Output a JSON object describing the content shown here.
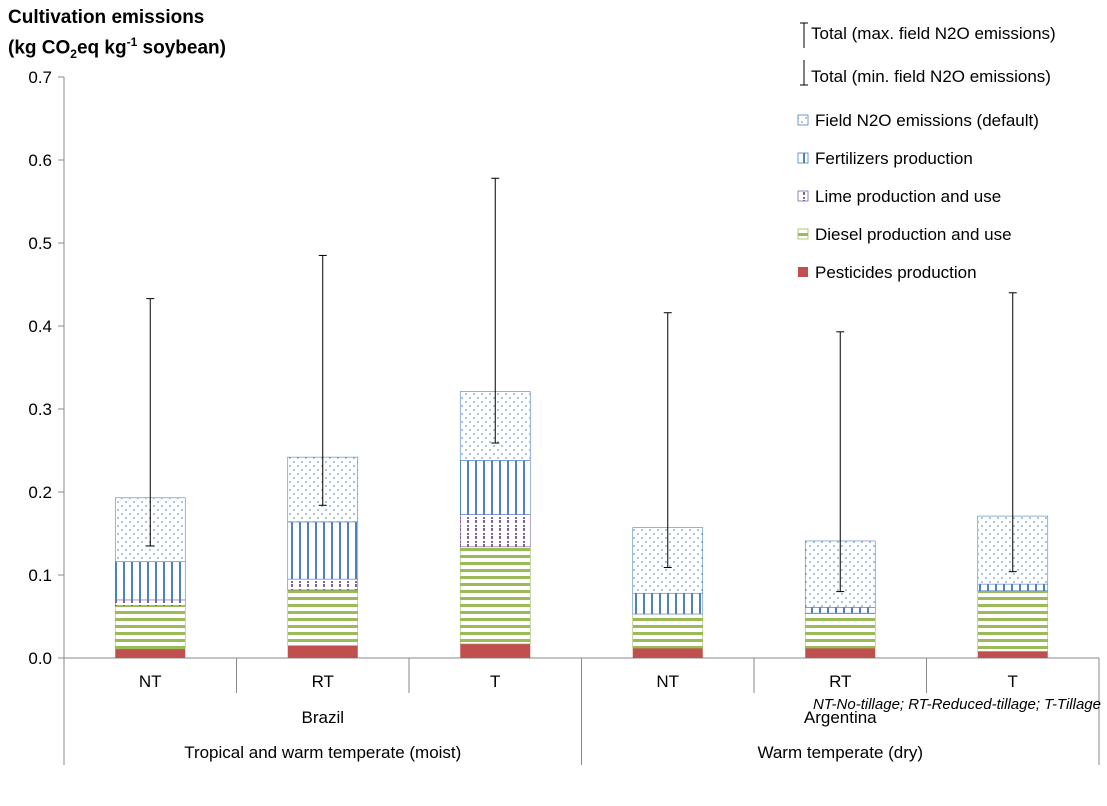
{
  "chart_data": {
    "type": "bar",
    "stacked": true,
    "title_line1": "Cultivation emissions",
    "title_line2_parts": [
      "(kg CO",
      "2",
      "eq kg",
      "-1",
      " soybean)"
    ],
    "ylim": [
      0,
      0.7
    ],
    "yticks": [
      "0.0",
      "0.1",
      "0.2",
      "0.3",
      "0.4",
      "0.5",
      "0.6",
      "0.7"
    ],
    "yticks_values": [
      0,
      0.1,
      0.2,
      0.3,
      0.4,
      0.5,
      0.6,
      0.7
    ],
    "categories": [
      "NT",
      "RT",
      "T",
      "NT",
      "RT",
      "T"
    ],
    "group_level1": [
      {
        "label": "Brazil",
        "span": 3
      },
      {
        "label": "Argentina",
        "span": 3
      }
    ],
    "group_level2": [
      {
        "label": "Tropical and warm temperate (moist)",
        "span": 3
      },
      {
        "label": "Warm temperate (dry)",
        "span": 3
      }
    ],
    "series": [
      {
        "name": "Pesticides production",
        "pattern": "solid",
        "color": "#c0504d",
        "values": [
          0.011,
          0.015,
          0.017,
          0.012,
          0.012,
          0.008
        ]
      },
      {
        "name": "Diesel production and use",
        "pattern": "hlines",
        "color": "#9bbb59",
        "values": [
          0.052,
          0.067,
          0.117,
          0.041,
          0.042,
          0.073
        ]
      },
      {
        "name": "Lime production and use",
        "pattern": "dashes",
        "color": "#8064a2",
        "values": [
          0.007,
          0.013,
          0.039,
          0.0,
          0.0,
          0.0
        ]
      },
      {
        "name": "Fertilizers production",
        "pattern": "vlines",
        "color": "#4f81bd",
        "values": [
          0.046,
          0.069,
          0.065,
          0.025,
          0.007,
          0.008
        ]
      },
      {
        "name": "Field N2O emissions (default)",
        "pattern": "dots",
        "color": "#4f81bd",
        "values": [
          0.077,
          0.078,
          0.083,
          0.079,
          0.08,
          0.082
        ]
      }
    ],
    "error_bars": {
      "max_label": "Total (max. field N2O emissions)",
      "min_label": "Total (min. field N2O emissions)",
      "max": [
        0.433,
        0.485,
        0.578,
        0.416,
        0.393,
        0.44
      ],
      "min": [
        0.135,
        0.184,
        0.259,
        0.109,
        0.08,
        0.104
      ]
    },
    "legend_position": "top-right",
    "grid": false
  },
  "footnote": "NT-No-tillage; RT-Reduced-tillage; T-Tillage"
}
